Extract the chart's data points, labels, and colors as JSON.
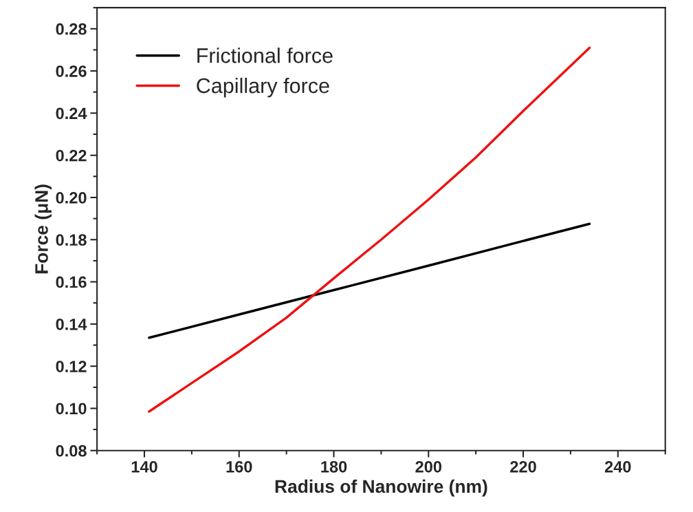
{
  "chart_data": {
    "type": "line",
    "xlabel": "Radius of Nanowire (nm)",
    "ylabel": "Force (μN)",
    "xlim": [
      130,
      250
    ],
    "xticks": [
      140,
      160,
      180,
      200,
      220,
      240
    ],
    "ylim": [
      0.08,
      0.29
    ],
    "yticks": [
      {
        "value": 0.08,
        "label": "0.08"
      },
      {
        "value": 0.1,
        "label": "0.10"
      },
      {
        "value": 0.12,
        "label": "0.12"
      },
      {
        "value": 0.14,
        "label": "0.14"
      },
      {
        "value": 0.16,
        "label": "0.16"
      },
      {
        "value": 0.18,
        "label": "0.18"
      },
      {
        "value": 0.2,
        "label": "0.20"
      },
      {
        "value": 0.22,
        "label": "0.22"
      },
      {
        "value": 0.24,
        "label": "0.24"
      },
      {
        "value": 0.26,
        "label": "0.26"
      },
      {
        "value": 0.28,
        "label": "0.28"
      }
    ],
    "grid": false,
    "legend": "top left",
    "line_style": "solid",
    "marker": "none",
    "series": [
      {
        "name": "Frictional force",
        "color": "#000000",
        "x": [
          141,
          160,
          180,
          200,
          220,
          234
        ],
        "values": [
          0.1335,
          0.1445,
          0.1561,
          0.1677,
          0.1794,
          0.1875
        ]
      },
      {
        "name": "Capillary force",
        "color": "#ee1111",
        "x": [
          141,
          150,
          160,
          170,
          180,
          190,
          200,
          210,
          220,
          234
        ],
        "values": [
          0.0985,
          0.112,
          0.127,
          0.143,
          0.1617,
          0.18,
          0.199,
          0.219,
          0.241,
          0.271
        ]
      }
    ]
  }
}
